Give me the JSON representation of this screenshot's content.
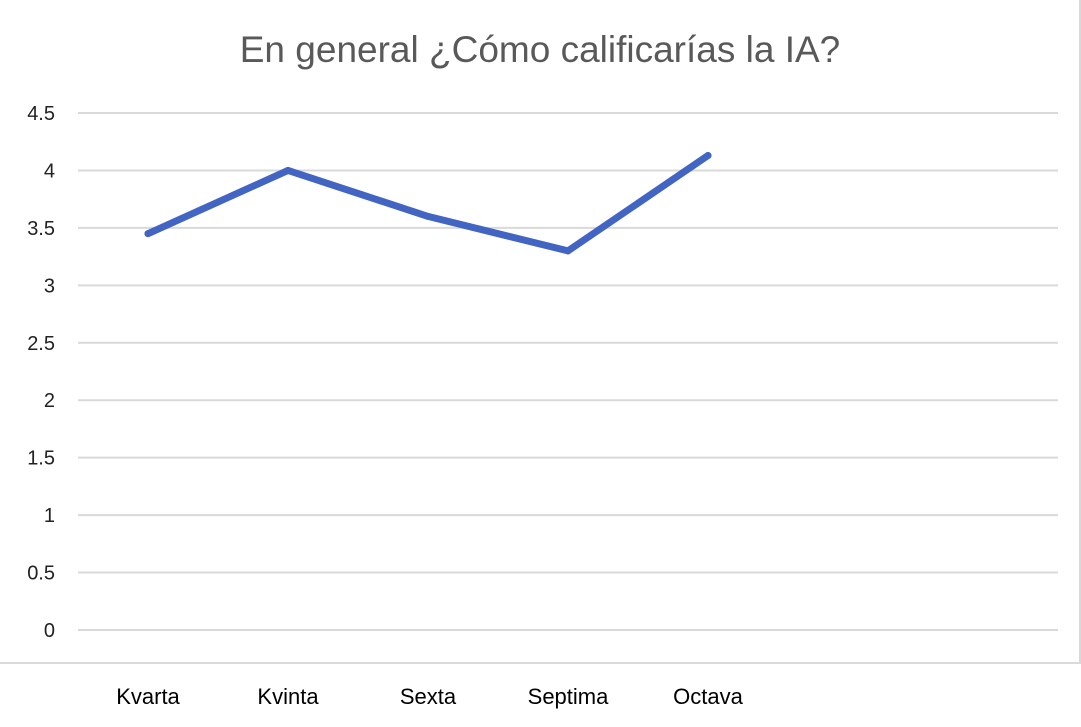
{
  "chart_data": {
    "type": "line",
    "title": "En general ¿Cómo calificarías la IA?",
    "xlabel": "",
    "ylabel": "",
    "categories": [
      "Kvarta",
      "Kvinta",
      "Sexta",
      "Septima",
      "Octava"
    ],
    "series": [
      {
        "values": [
          3.45,
          4.0,
          3.6,
          3.3,
          4.13
        ],
        "color": "#4264c2"
      }
    ],
    "ylim": [
      0,
      4.5
    ],
    "yticks": [
      "0",
      "0.5",
      "1",
      "1.5",
      "2",
      "2.5",
      "3",
      "3.5",
      "4",
      "4.5"
    ],
    "grid": true,
    "legend": "none"
  }
}
